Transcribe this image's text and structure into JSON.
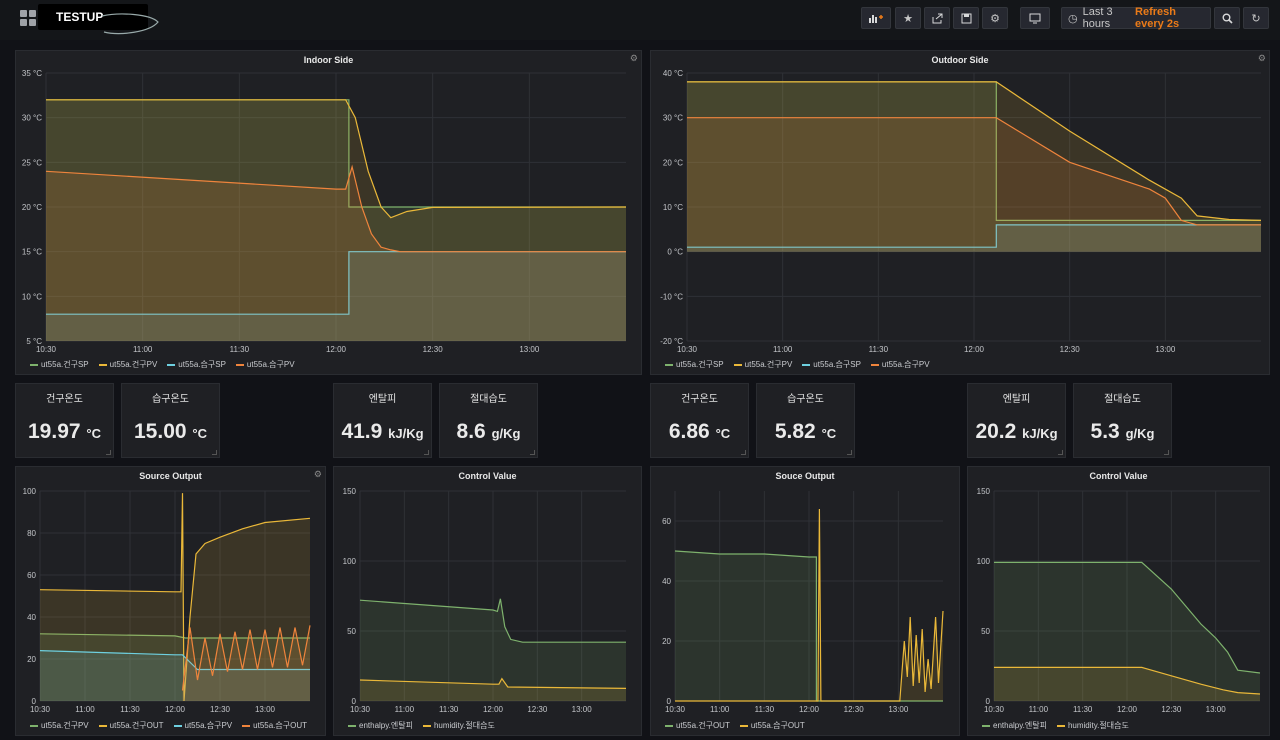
{
  "header": {
    "dashboard_title": "TESTUP",
    "time_range": "Last 3 hours",
    "refresh": "Refresh every 2s",
    "icons": [
      "add-panel-icon",
      "star-icon",
      "share-icon",
      "save-icon",
      "settings-icon",
      "tv-mode-icon",
      "clock-icon",
      "zoom-out-icon",
      "refresh-icon"
    ]
  },
  "colors": {
    "green": "#7eb26d",
    "yellow": "#eab839",
    "cyan": "#6ed0e0",
    "orange": "#ef843c",
    "background": "#111217",
    "panel": "#1f2024"
  },
  "stats": [
    {
      "title": "건구온도",
      "value": "19.97",
      "unit": "°C"
    },
    {
      "title": "습구온도",
      "value": "15.00",
      "unit": "°C"
    },
    {
      "title": "엔탈피",
      "value": "41.9",
      "unit": "kJ/Kg"
    },
    {
      "title": "절대습도",
      "value": "8.6",
      "unit": "g/Kg"
    },
    {
      "title": "건구온도",
      "value": "6.86",
      "unit": "°C"
    },
    {
      "title": "습구온도",
      "value": "5.82",
      "unit": "°C"
    },
    {
      "title": "엔탈피",
      "value": "20.2",
      "unit": "kJ/Kg"
    },
    {
      "title": "절대습도",
      "value": "5.3",
      "unit": "g/Kg"
    }
  ],
  "chart_data": [
    {
      "type": "area",
      "title": "Indoor Side",
      "x_ticks": [
        "10:30",
        "11:00",
        "11:30",
        "12:00",
        "12:30",
        "13:00"
      ],
      "y_ticks": [
        "5 °C",
        "10 °C",
        "15 °C",
        "20 °C",
        "25 °C",
        "30 °C",
        "35 °C"
      ],
      "ylim": [
        5,
        35
      ],
      "x_domain": [
        "10:30",
        "13:30"
      ],
      "series": [
        {
          "name": "ut55a.건구SP",
          "color": "#7eb26d",
          "points": [
            [
              "10:30",
              32
            ],
            [
              "12:04",
              32
            ],
            [
              "12:04",
              20
            ],
            [
              "13:30",
              20
            ]
          ]
        },
        {
          "name": "ut55a.건구PV",
          "color": "#eab839",
          "points": [
            [
              "10:30",
              32
            ],
            [
              "12:03",
              32
            ],
            [
              "12:06",
              30
            ],
            [
              "12:10",
              24
            ],
            [
              "12:14",
              20
            ],
            [
              "12:17",
              18.8
            ],
            [
              "12:22",
              19.5
            ],
            [
              "12:30",
              19.95
            ],
            [
              "13:30",
              20
            ]
          ]
        },
        {
          "name": "ut55a.습구SP",
          "color": "#6ed0e0",
          "points": [
            [
              "10:30",
              8
            ],
            [
              "12:04",
              8
            ],
            [
              "12:04",
              15
            ],
            [
              "13:30",
              15
            ]
          ]
        },
        {
          "name": "ut55a.습구PV",
          "color": "#ef843c",
          "points": [
            [
              "10:30",
              24
            ],
            [
              "12:00",
              22
            ],
            [
              "12:03",
              22
            ],
            [
              "12:05",
              24.5
            ],
            [
              "12:08",
              20
            ],
            [
              "12:11",
              17
            ],
            [
              "12:14",
              15.5
            ],
            [
              "12:17",
              15.2
            ],
            [
              "12:20",
              15
            ],
            [
              "13:30",
              15
            ]
          ]
        }
      ]
    },
    {
      "type": "area",
      "title": "Outdoor Side",
      "x_ticks": [
        "10:30",
        "11:00",
        "11:30",
        "12:00",
        "12:30",
        "13:00"
      ],
      "y_ticks": [
        "-20 °C",
        "-10 °C",
        "0 °C",
        "10 °C",
        "20 °C",
        "30 °C",
        "40 °C"
      ],
      "ylim": [
        -20,
        40
      ],
      "x_domain": [
        "10:30",
        "13:30"
      ],
      "series": [
        {
          "name": "ut55a.건구SP",
          "color": "#7eb26d",
          "points": [
            [
              "10:30",
              38
            ],
            [
              "12:07",
              38
            ],
            [
              "12:07",
              7
            ],
            [
              "13:30",
              7
            ]
          ]
        },
        {
          "name": "ut55a.건구PV",
          "color": "#eab839",
          "points": [
            [
              "10:30",
              38
            ],
            [
              "12:07",
              38
            ],
            [
              "12:30",
              27
            ],
            [
              "12:55",
              16
            ],
            [
              "13:05",
              12
            ],
            [
              "13:10",
              8
            ],
            [
              "13:20",
              7.2
            ],
            [
              "13:30",
              7
            ]
          ]
        },
        {
          "name": "ut55a.습구SP",
          "color": "#6ed0e0",
          "points": [
            [
              "10:30",
              1
            ],
            [
              "12:07",
              1
            ],
            [
              "12:07",
              6
            ],
            [
              "13:30",
              6
            ]
          ]
        },
        {
          "name": "ut55a.습구PV",
          "color": "#ef843c",
          "points": [
            [
              "10:30",
              30
            ],
            [
              "12:07",
              30
            ],
            [
              "12:30",
              20
            ],
            [
              "12:55",
              14
            ],
            [
              "13:00",
              12
            ],
            [
              "13:05",
              7
            ],
            [
              "13:10",
              6
            ],
            [
              "13:30",
              6
            ]
          ]
        }
      ]
    },
    {
      "type": "area",
      "title": "Source Output",
      "x_ticks": [
        "10:30",
        "11:00",
        "11:30",
        "12:00",
        "12:30",
        "13:00"
      ],
      "y_ticks": [
        "0",
        "20",
        "40",
        "60",
        "80",
        "100"
      ],
      "ylim": [
        0,
        100
      ],
      "x_domain": [
        "10:30",
        "13:30"
      ],
      "series": [
        {
          "name": "ut55a.건구PV",
          "color": "#7eb26d",
          "points": [
            [
              "10:30",
              32
            ],
            [
              "12:00",
              31
            ],
            [
              "12:07",
              30
            ],
            [
              "13:30",
              30
            ]
          ]
        },
        {
          "name": "ut55a.건구OUT",
          "color": "#eab839",
          "points": [
            [
              "10:30",
              53
            ],
            [
              "12:00",
              52
            ],
            [
              "12:04",
              52
            ],
            [
              "12:05",
              99
            ],
            [
              "12:06",
              0
            ],
            [
              "12:10",
              40
            ],
            [
              "12:14",
              70
            ],
            [
              "12:20",
              75
            ],
            [
              "12:30",
              78
            ],
            [
              "12:45",
              82
            ],
            [
              "13:00",
              85
            ],
            [
              "13:30",
              87
            ]
          ]
        },
        {
          "name": "ut55a.습구PV",
          "color": "#6ed0e0",
          "points": [
            [
              "10:30",
              24
            ],
            [
              "12:00",
              22
            ],
            [
              "12:05",
              22
            ],
            [
              "12:15",
              15
            ],
            [
              "13:30",
              15
            ]
          ]
        },
        {
          "name": "ut55a.습구OUT",
          "color": "#ef843c",
          "points": [
            [
              "12:05",
              5
            ],
            [
              "12:10",
              35
            ],
            [
              "12:15",
              10
            ],
            [
              "12:20",
              30
            ],
            [
              "12:25",
              12
            ],
            [
              "12:30",
              32
            ],
            [
              "12:35",
              14
            ],
            [
              "12:40",
              33
            ],
            [
              "12:45",
              15
            ],
            [
              "12:50",
              34
            ],
            [
              "12:55",
              15
            ],
            [
              "13:00",
              34
            ],
            [
              "13:05",
              16
            ],
            [
              "13:10",
              35
            ],
            [
              "13:15",
              16
            ],
            [
              "13:20",
              35
            ],
            [
              "13:25",
              17
            ],
            [
              "13:30",
              36
            ]
          ]
        }
      ]
    },
    {
      "type": "area",
      "title": "Control Value",
      "x_ticks": [
        "10:30",
        "11:00",
        "11:30",
        "12:00",
        "12:30",
        "13:00"
      ],
      "y_ticks": [
        "0",
        "50",
        "100",
        "150"
      ],
      "ylim": [
        0,
        150
      ],
      "x_domain": [
        "10:30",
        "13:30"
      ],
      "series": [
        {
          "name": "enthalpy.엔탈피",
          "color": "#7eb26d",
          "points": [
            [
              "10:30",
              72
            ],
            [
              "12:00",
              65
            ],
            [
              "12:03",
              64
            ],
            [
              "12:05",
              73
            ],
            [
              "12:08",
              53
            ],
            [
              "12:12",
              44
            ],
            [
              "12:20",
              42
            ],
            [
              "13:30",
              42
            ]
          ]
        },
        {
          "name": "humidity.절대습도",
          "color": "#eab839",
          "points": [
            [
              "10:30",
              15
            ],
            [
              "12:00",
              12
            ],
            [
              "12:04",
              12
            ],
            [
              "12:06",
              16
            ],
            [
              "12:10",
              10
            ],
            [
              "13:30",
              9
            ]
          ]
        }
      ]
    },
    {
      "type": "area",
      "title": "Souce Output",
      "x_ticks": [
        "10:30",
        "11:00",
        "11:30",
        "12:00",
        "12:30",
        "13:00"
      ],
      "y_ticks": [
        "0",
        "20",
        "40",
        "60"
      ],
      "ylim": [
        0,
        70
      ],
      "x_domain": [
        "10:30",
        "13:30"
      ],
      "series": [
        {
          "name": "ut55a.건구OUT",
          "color": "#7eb26d",
          "points": [
            [
              "10:30",
              50
            ],
            [
              "11:00",
              49
            ],
            [
              "11:30",
              49
            ],
            [
              "12:00",
              48
            ],
            [
              "12:05",
              48
            ],
            [
              "12:05",
              0
            ],
            [
              "13:30",
              0
            ]
          ]
        },
        {
          "name": "ut55a.습구OUT",
          "color": "#eab839",
          "points": [
            [
              "10:30",
              0
            ],
            [
              "12:06",
              0
            ],
            [
              "12:07",
              64
            ],
            [
              "12:08",
              0
            ],
            [
              "13:01",
              0
            ],
            [
              "13:04",
              20
            ],
            [
              "13:06",
              8
            ],
            [
              "13:08",
              28
            ],
            [
              "13:10",
              5
            ],
            [
              "13:12",
              22
            ],
            [
              "13:14",
              6
            ],
            [
              "13:16",
              24
            ],
            [
              "13:18",
              3
            ],
            [
              "13:20",
              14
            ],
            [
              "13:22",
              4
            ],
            [
              "13:25",
              28
            ],
            [
              "13:27",
              6
            ],
            [
              "13:30",
              30
            ]
          ]
        }
      ]
    },
    {
      "type": "area",
      "title": "Control Value",
      "x_ticks": [
        "10:30",
        "11:00",
        "11:30",
        "12:00",
        "12:30",
        "13:00"
      ],
      "y_ticks": [
        "0",
        "50",
        "100",
        "150"
      ],
      "ylim": [
        0,
        150
      ],
      "x_domain": [
        "10:30",
        "13:30"
      ],
      "series": [
        {
          "name": "enthalpy.엔탈피",
          "color": "#7eb26d",
          "points": [
            [
              "10:30",
              99
            ],
            [
              "12:10",
              99
            ],
            [
              "12:30",
              80
            ],
            [
              "12:50",
              55
            ],
            [
              "13:00",
              45
            ],
            [
              "13:08",
              35
            ],
            [
              "13:15",
              22
            ],
            [
              "13:30",
              20
            ]
          ]
        },
        {
          "name": "humidity.절대습도",
          "color": "#eab839",
          "points": [
            [
              "10:30",
              24
            ],
            [
              "12:10",
              24
            ],
            [
              "12:30",
              18
            ],
            [
              "12:50",
              12
            ],
            [
              "13:05",
              8
            ],
            [
              "13:15",
              6
            ],
            [
              "13:30",
              5
            ]
          ]
        }
      ]
    }
  ]
}
